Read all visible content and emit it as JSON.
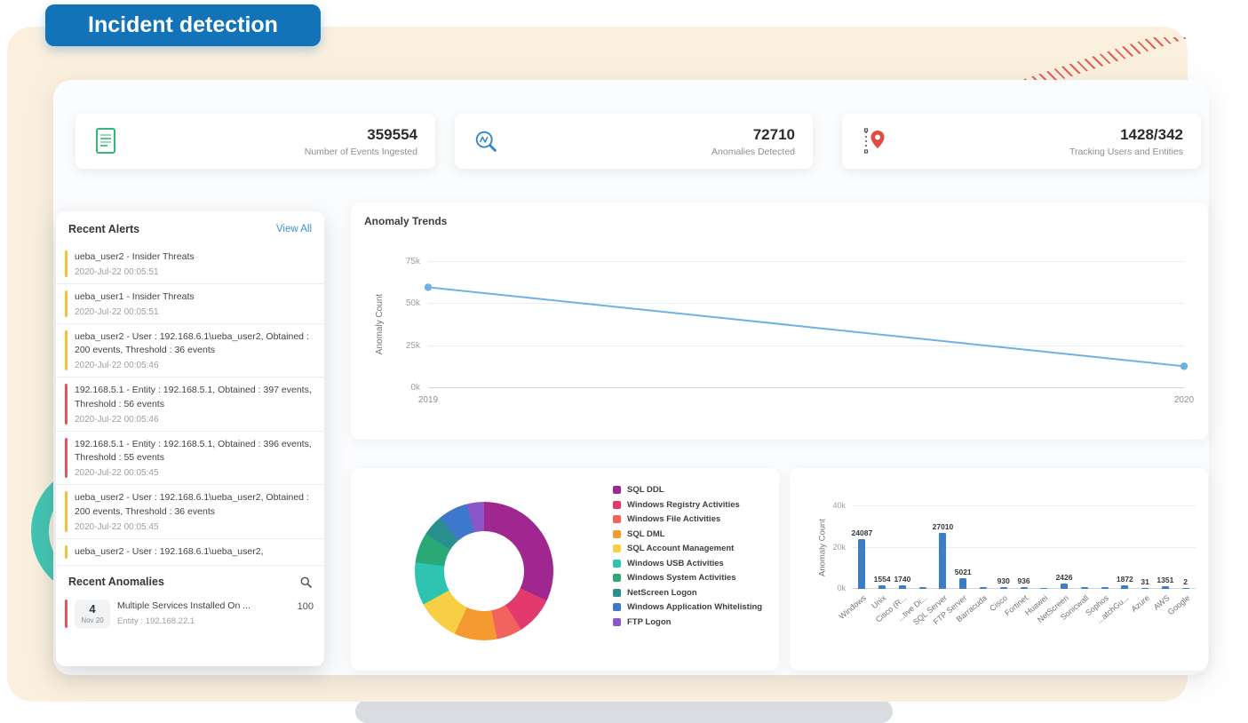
{
  "page": {
    "badge": "Incident detection"
  },
  "colors": {
    "accent_blue": "#1273b9",
    "line": "#6fb1e3",
    "bar": "#3c7ec6",
    "link": "#3d8fd8",
    "severity": {
      "yellow": "#f0c23e",
      "red": "#e25563"
    }
  },
  "stats": [
    {
      "icon": "document-icon",
      "value": "359554",
      "label": "Number of Events Ingested"
    },
    {
      "icon": "anomaly-search-icon",
      "value": "72710",
      "label": "Anomalies Detected"
    },
    {
      "icon": "map-pin-icon",
      "value": "1428/342",
      "label": "Tracking Users and Entities"
    }
  ],
  "recent_alerts": {
    "title": "Recent Alerts",
    "view_all": "View All",
    "items": [
      {
        "severity": "yellow",
        "title": "ueba_user2 - Insider Threats",
        "time": "2020-Jul-22 00:05:51"
      },
      {
        "severity": "yellow",
        "title": "ueba_user1 - Insider Threats",
        "time": "2020-Jul-22 00:05:51"
      },
      {
        "severity": "yellow",
        "title": "ueba_user2 - User : 192.168.6.1\\ueba_user2, Obtained : 200 events, Threshold : 36 events",
        "time": "2020-Jul-22 00:05:46"
      },
      {
        "severity": "red",
        "title": "192.168.5.1 - Entity : 192.168.5.1, Obtained : 397 events, Threshold : 56 events",
        "time": "2020-Jul-22 00:05:46"
      },
      {
        "severity": "red",
        "title": "192.168.5.1 - Entity : 192.168.5.1, Obtained : 396 events, Threshold : 55 events",
        "time": "2020-Jul-22 00:05:45"
      },
      {
        "severity": "yellow",
        "title": "ueba_user2 - User : 192.168.6.1\\ueba_user2, Obtained : 200 events, Threshold : 36 events",
        "time": "2020-Jul-22 00:05:45"
      },
      {
        "severity": "yellow",
        "title": "ueba_user2 - User : 192.168.6.1\\ueba_user2,",
        "time": null
      }
    ]
  },
  "recent_anomalies": {
    "title": "Recent Anomalies",
    "items": [
      {
        "severity": "red",
        "date_day": "4",
        "date_month": "Nov 20",
        "title": "Multiple Services Installed On ...",
        "entity": "Entity : 192.168.22.1",
        "score": "100"
      }
    ]
  },
  "chart_data": [
    {
      "type": "line",
      "title": "Anomaly Trends",
      "ylabel": "Anomaly Count",
      "x": [
        "2019",
        "2020"
      ],
      "values": [
        60000,
        13000
      ],
      "ylim": [
        0,
        75000
      ],
      "yticks": [
        0,
        25000,
        50000,
        75000
      ],
      "ytick_labels": [
        "0k",
        "25k",
        "50k",
        "75k"
      ],
      "grid": true,
      "line_color": "#6fb1e3"
    },
    {
      "type": "pie",
      "title": "",
      "legend_position": "right",
      "slices": [
        {
          "name": "SQL DDL",
          "value": 32,
          "color": "#a0278f"
        },
        {
          "name": "Windows Registry Activities",
          "value": 9,
          "color": "#e23a6d"
        },
        {
          "name": "Windows File Activities",
          "value": 6,
          "color": "#f2635f"
        },
        {
          "name": "SQL DML",
          "value": 10,
          "color": "#f59a31"
        },
        {
          "name": "SQL Account Management",
          "value": 10,
          "color": "#f7cf45"
        },
        {
          "name": "Windows USB Activities",
          "value": 10,
          "color": "#2fc4b2"
        },
        {
          "name": "Windows System Activities",
          "value": 7,
          "color": "#2aa876"
        },
        {
          "name": "NetScreen Logon",
          "value": 5,
          "color": "#2a8f8f"
        },
        {
          "name": "Windows Application Whitelisting",
          "value": 7,
          "color": "#3e78cc"
        },
        {
          "name": "FTP Logon",
          "value": 4,
          "color": "#8a56c8"
        }
      ]
    },
    {
      "type": "bar",
      "title": "",
      "ylabel": "Anomaly Count",
      "ylim": [
        0,
        40000
      ],
      "yticks": [
        0,
        20000,
        40000
      ],
      "ytick_labels": [
        "0k",
        "20k",
        "40k"
      ],
      "bar_color": "#3c7ec6",
      "bars": [
        {
          "category": "Windows",
          "value": 24087,
          "label": "24087"
        },
        {
          "category": "Unix",
          "value": 1554,
          "label": "1554"
        },
        {
          "category": "Cisco (R...",
          "value": 1740,
          "label": "1740"
        },
        {
          "category": "...tive Di...",
          "value": 900,
          "label": ""
        },
        {
          "category": "SQL Server",
          "value": 27010,
          "label": "27010"
        },
        {
          "category": "FTP Server",
          "value": 5021,
          "label": "5021"
        },
        {
          "category": "Barracuda",
          "value": 800,
          "label": ""
        },
        {
          "category": "Cisco",
          "value": 930,
          "label": "930"
        },
        {
          "category": "Fortinet",
          "value": 936,
          "label": "936"
        },
        {
          "category": "Huawei",
          "value": 500,
          "label": ""
        },
        {
          "category": "NetScreen",
          "value": 2426,
          "label": "2426"
        },
        {
          "category": "Sonicwall",
          "value": 700,
          "label": ""
        },
        {
          "category": "Sophos",
          "value": 900,
          "label": ""
        },
        {
          "category": "...atchGu...",
          "value": 1872,
          "label": "1872"
        },
        {
          "category": "Azure",
          "value": 31,
          "label": "31"
        },
        {
          "category": "AWS",
          "value": 1351,
          "label": "1351"
        },
        {
          "category": "Google",
          "value": 2,
          "label": "2"
        }
      ]
    }
  ]
}
